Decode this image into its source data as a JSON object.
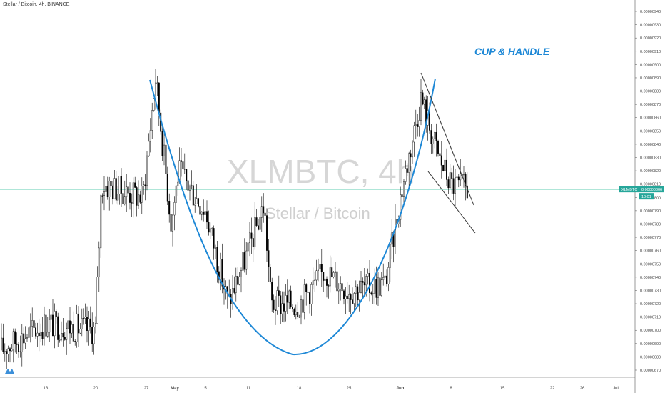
{
  "header": {
    "title": "Stellar / Bitcoin, 4h, BINANCE"
  },
  "watermark": {
    "symbol": "XLMBTC, 4h",
    "name": "Stellar / Bitcoin"
  },
  "annotation": {
    "text": "CUP & HANDLE",
    "color": "#1e88d6"
  },
  "price_tag": {
    "symbol": "XLMBTC",
    "price": "0.00000806",
    "countdown": "10:01"
  },
  "colors": {
    "up": "#ffffff",
    "down": "#000000",
    "outline": "#000000",
    "cup": "#1e88d6",
    "hline": "#7fd6c0",
    "tag_bg": "#26a69a"
  },
  "chart_data": {
    "type": "candlestick",
    "symbol": "XLMBTC",
    "timeframe": "4h",
    "exchange": "BINANCE",
    "ylim": [
      6.65e-06,
      9.45e-06
    ],
    "y_ticks": [
      "0.00000940",
      "0.00000930",
      "0.00000920",
      "0.00000910",
      "0.00000900",
      "0.00000890",
      "0.00000880",
      "0.00000870",
      "0.00000860",
      "0.00000850",
      "0.00000840",
      "0.00000830",
      "0.00000820",
      "0.00000810",
      "0.00000800",
      "0.00000790",
      "0.00000780",
      "0.00000770",
      "0.00000760",
      "0.00000750",
      "0.00000740",
      "0.00000730",
      "0.00000720",
      "0.00000710",
      "0.00000700",
      "0.00000690",
      "0.00000680",
      "0.00000670"
    ],
    "x_ticks": [
      "13",
      "20",
      "27",
      "May",
      "5",
      "11",
      "18",
      "25",
      "Jun",
      "8",
      "15",
      "22",
      "26",
      "Jul"
    ],
    "current_price": 8.06e-06,
    "price_path_anchors": [
      [
        "start",
        6.85e-06
      ],
      [
        "13",
        7.05e-06
      ],
      [
        "20",
        7e-06
      ],
      [
        "after 20",
        8.1e-06
      ],
      [
        "before 27",
        8e-06
      ],
      [
        "27",
        8.9e-06
      ],
      [
        "before May",
        7.8e-06
      ],
      [
        "May",
        8.2e-06
      ],
      [
        "5",
        7.9e-06
      ],
      [
        "before 11",
        7.2e-06
      ],
      [
        "11",
        7.6e-06
      ],
      [
        "after 11",
        7.95e-06
      ],
      [
        "before 18",
        7.2e-06
      ],
      [
        "18",
        7.2e-06
      ],
      [
        "mid",
        7.45e-06
      ],
      [
        "25",
        7.3e-06
      ],
      [
        "before Jun",
        7.35e-06
      ],
      [
        "Jun",
        8e-06
      ],
      [
        "after Jun",
        8.75e-06
      ],
      [
        "before 8",
        8.3e-06
      ],
      [
        "8",
        8.1e-06
      ],
      [
        "last",
        8.06e-06
      ]
    ],
    "pattern": "cup and handle",
    "annotations": [
      "CUP & HANDLE"
    ],
    "grid": false
  }
}
